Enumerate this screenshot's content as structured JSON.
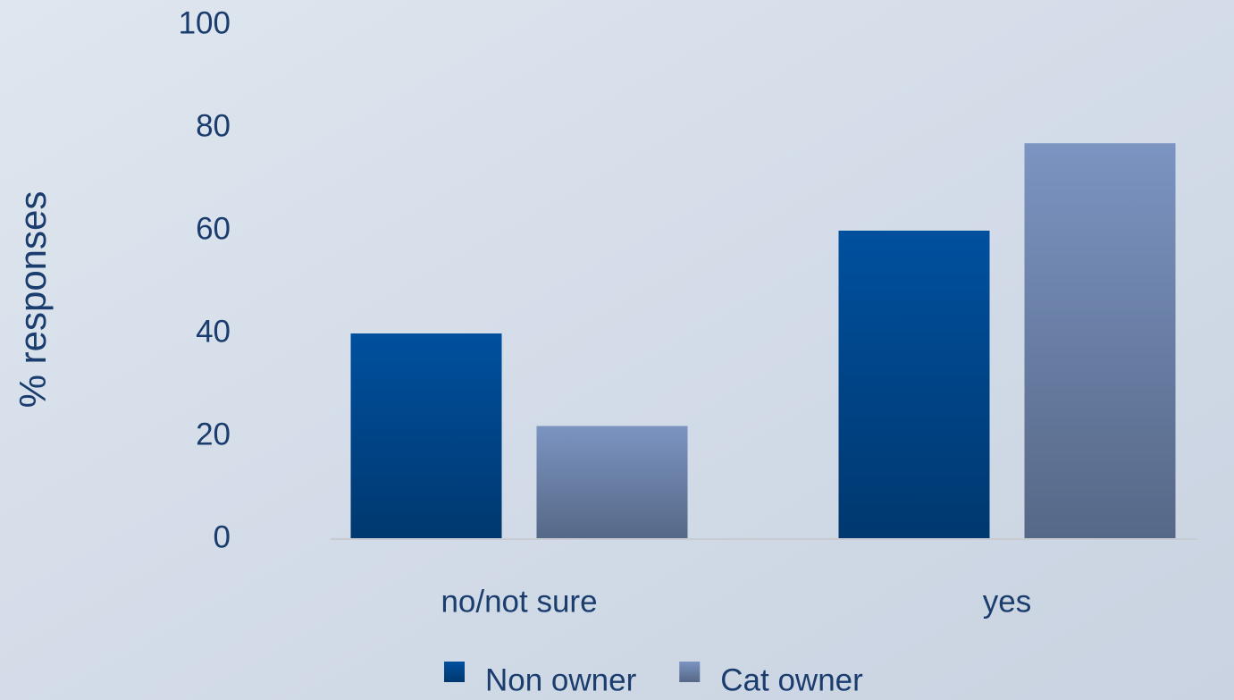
{
  "chart_data": {
    "type": "bar",
    "y_label": "% responses",
    "categories": [
      "no/not sure",
      "yes"
    ],
    "series": [
      {
        "name": "Non owner",
        "color": "#00509e",
        "values": [
          40,
          60
        ]
      },
      {
        "name": "Cat owner",
        "color": "#7b94c1",
        "values": [
          22,
          77
        ]
      }
    ],
    "ylim": [
      0,
      100
    ],
    "yticks": [
      0,
      20,
      40,
      60,
      80,
      100
    ],
    "grid": false,
    "legend": "bottom"
  }
}
